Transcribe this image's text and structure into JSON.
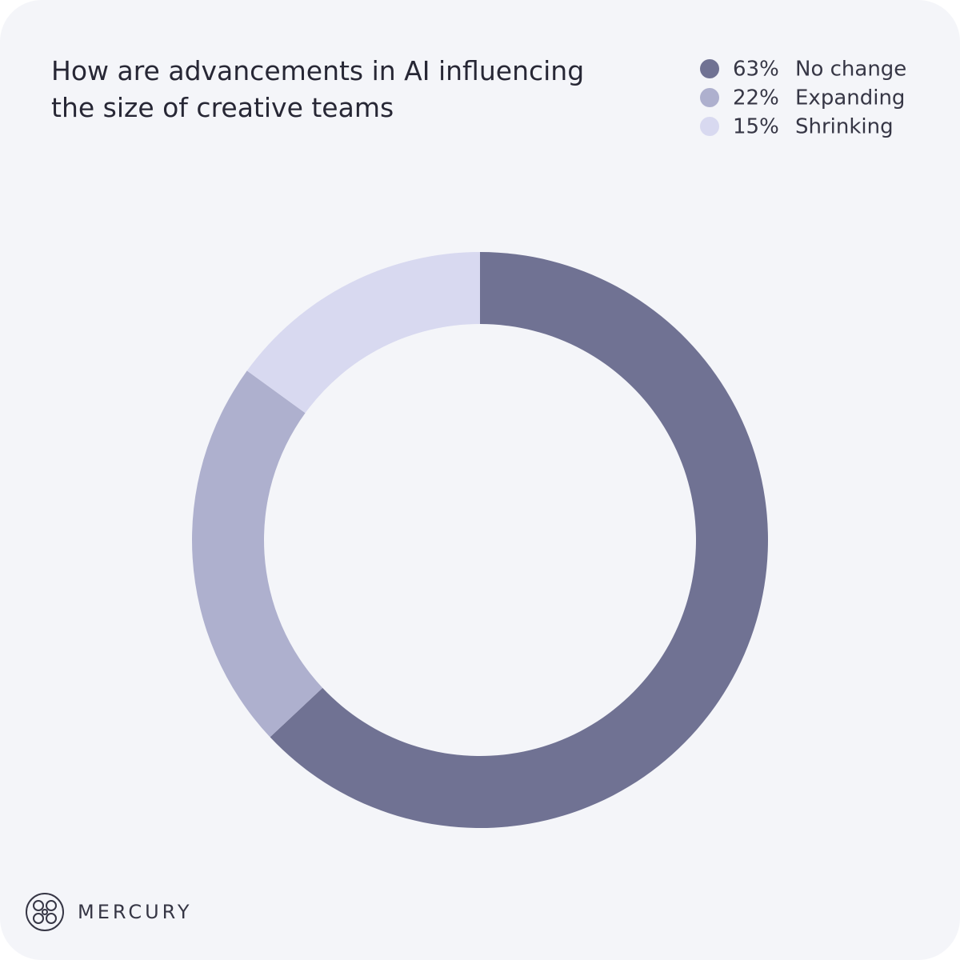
{
  "chart_data": {
    "type": "pie",
    "donut": true,
    "title": "How are advancements in AI influencing the size of creative teams",
    "categories": [
      "No change",
      "Expanding",
      "Shrinking"
    ],
    "values": [
      63,
      22,
      15
    ],
    "value_labels": [
      "63%",
      "22%",
      "15%"
    ],
    "colors": [
      "#707293",
      "#aeb0ce",
      "#d8d9f0"
    ]
  },
  "brand": "MERCURY"
}
